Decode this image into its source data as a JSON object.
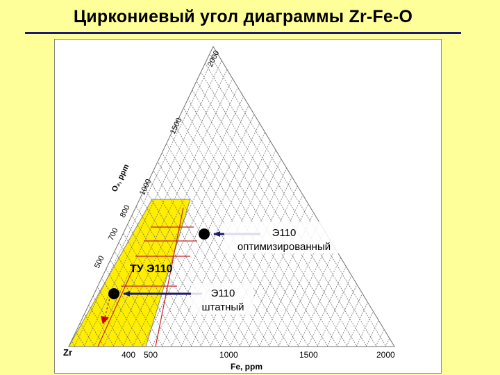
{
  "title": "Циркониевый угол диаграммы Zr-Fe-O",
  "diagram": {
    "corner_label": "Zr",
    "x_axis": {
      "label": "Fe, ppm",
      "ticks": [
        "400",
        "500",
        "1000",
        "1500",
        "2000"
      ]
    },
    "y_axis": {
      "label": "O₂, ppm",
      "ticks": [
        "500",
        "700",
        "800",
        "1000",
        "1500",
        "2000"
      ]
    },
    "region_label": "ТУ Э110",
    "annotations": [
      {
        "line1": "Э110",
        "line2": "оптимизированный"
      },
      {
        "line1": "Э110",
        "line2": "штатный"
      }
    ],
    "colors": {
      "region": "#FFEE00",
      "grid": "#6f6f6f",
      "arrow": "#1a1a6e",
      "spec_lines": "#cc2222",
      "trend_arrow": "#cc0000",
      "background": "#FFFF99"
    }
  }
}
